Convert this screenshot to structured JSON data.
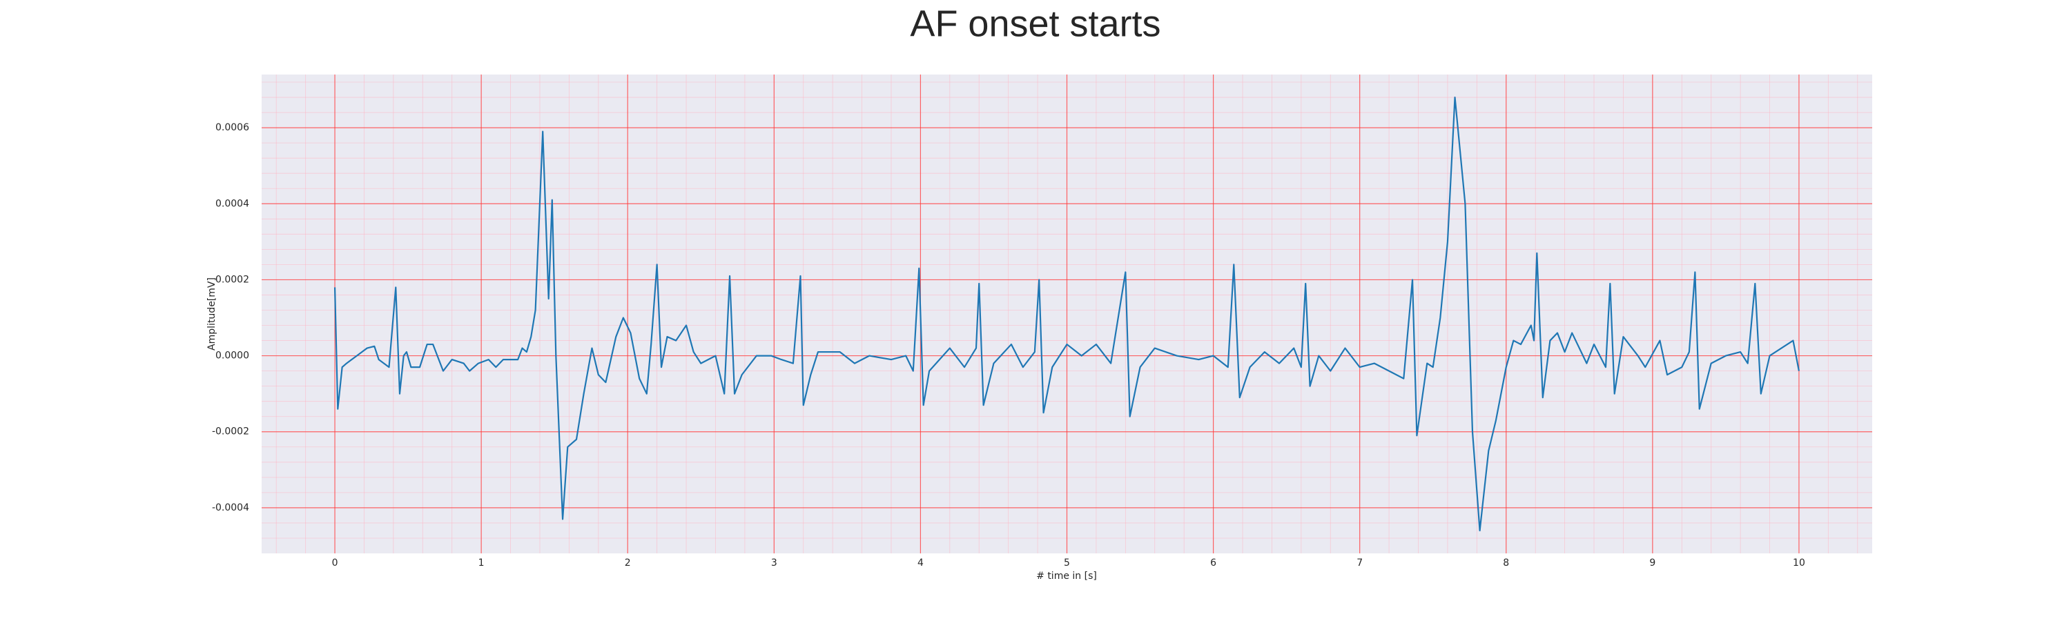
{
  "chart_data": {
    "type": "line",
    "title": "AF onset starts",
    "x_label": "# time in [s]",
    "y_label": "Amplitude[mV]",
    "color": "#1f77b4",
    "grid": true,
    "minor_grid": true,
    "xlim": [
      -0.5,
      10.5
    ],
    "xticks": [
      0,
      1,
      2,
      3,
      4,
      5,
      6,
      7,
      8,
      9,
      10
    ],
    "ylim": [
      -0.00052,
      0.00074
    ],
    "yticks": [
      -0.0004,
      -0.0002,
      {
        "value": 0,
        "label": "0.0000"
      },
      0.0002,
      0.0004,
      0.0006
    ],
    "x": [
      0,
      0.02,
      0.05,
      0.08,
      0.15,
      0.22,
      0.27,
      0.3,
      0.37,
      0.416,
      0.443,
      0.47,
      0.49,
      0.52,
      0.58,
      0.63,
      0.67,
      0.74,
      0.8,
      0.88,
      0.92,
      0.98,
      1.05,
      1.1,
      1.15,
      1.25,
      1.28,
      1.31,
      1.34,
      1.37,
      1.42,
      1.46,
      1.484,
      1.51,
      1.556,
      1.59,
      1.65,
      1.7,
      1.756,
      1.8,
      1.85,
      1.92,
      1.97,
      2.02,
      2.08,
      2.13,
      2.16,
      2.2,
      2.23,
      2.27,
      2.33,
      2.4,
      2.45,
      2.5,
      2.6,
      2.66,
      2.697,
      2.73,
      2.78,
      2.88,
      2.98,
      3.05,
      3.13,
      3.18,
      3.2,
      3.25,
      3.3,
      3.45,
      3.55,
      3.65,
      3.8,
      3.9,
      3.95,
      3.99,
      4.02,
      4.06,
      4.2,
      4.3,
      4.38,
      4.4,
      4.43,
      4.5,
      4.62,
      4.7,
      4.78,
      4.81,
      4.84,
      4.9,
      5.0,
      5.1,
      5.2,
      5.3,
      5.4,
      5.43,
      5.5,
      5.6,
      5.75,
      5.9,
      6.0,
      6.1,
      6.14,
      6.18,
      6.25,
      6.35,
      6.45,
      6.55,
      6.6,
      6.63,
      6.66,
      6.72,
      6.8,
      6.9,
      7.0,
      7.1,
      7.2,
      7.3,
      7.36,
      7.39,
      7.46,
      7.5,
      7.55,
      7.6,
      7.65,
      7.72,
      7.77,
      7.82,
      7.88,
      7.93,
      8.0,
      8.05,
      8.1,
      8.17,
      8.19,
      8.21,
      8.25,
      8.3,
      8.35,
      8.4,
      8.45,
      8.55,
      8.6,
      8.68,
      8.71,
      8.74,
      8.8,
      8.9,
      8.95,
      9.05,
      9.1,
      9.2,
      9.25,
      9.29,
      9.32,
      9.4,
      9.5,
      9.6,
      9.65,
      9.7,
      9.74,
      9.8,
      9.88,
      9.96,
      10.0
    ],
    "values": [
      0.00018,
      -0.00014,
      -3e-05,
      -2e-05,
      0,
      2e-05,
      2.5e-05,
      -1e-05,
      -3e-05,
      0.00018,
      -0.0001,
      0,
      1e-05,
      -3e-05,
      -3e-05,
      3e-05,
      3e-05,
      -4e-05,
      -1e-05,
      -2e-05,
      -4e-05,
      -2e-05,
      -1e-05,
      -3e-05,
      -1e-05,
      -1e-05,
      2e-05,
      1e-05,
      5e-05,
      0.00012,
      0.00059,
      0.00015,
      0.00041,
      0,
      -0.00043,
      -0.00024,
      -0.00022,
      -0.0001,
      2e-05,
      -5e-05,
      -7e-05,
      5e-05,
      0.0001,
      6e-05,
      -6e-05,
      -0.0001,
      3e-05,
      0.00024,
      -3e-05,
      5e-05,
      4e-05,
      8e-05,
      1e-05,
      -2e-05,
      0,
      -0.0001,
      0.00021,
      -0.0001,
      -5e-05,
      0,
      0,
      -1e-05,
      -2e-05,
      0.00021,
      -0.00013,
      -5e-05,
      1e-05,
      1e-05,
      -2e-05,
      0,
      -1e-05,
      0,
      -4e-05,
      0.00023,
      -0.00013,
      -4e-05,
      2e-05,
      -3e-05,
      2e-05,
      0.00019,
      -0.00013,
      -2e-05,
      3e-05,
      -3e-05,
      1e-05,
      0.0002,
      -0.00015,
      -3e-05,
      3e-05,
      0,
      3e-05,
      -2e-05,
      0.00022,
      -0.00016,
      -3e-05,
      2e-05,
      0,
      -1e-05,
      0,
      -3e-05,
      0.00024,
      -0.00011,
      -3e-05,
      1e-05,
      -2e-05,
      2e-05,
      -3e-05,
      0.00019,
      -8e-05,
      0,
      -4e-05,
      2e-05,
      -3e-05,
      -2e-05,
      -4e-05,
      -6e-05,
      0.0002,
      -0.00021,
      -2e-05,
      -3e-05,
      0.0001,
      0.0003,
      0.00068,
      0.0004,
      -0.0002,
      -0.00046,
      -0.00025,
      -0.00017,
      -3e-05,
      4e-05,
      3e-05,
      8e-05,
      4e-05,
      0.00027,
      -0.00011,
      4e-05,
      6e-05,
      1e-05,
      6e-05,
      -2e-05,
      3e-05,
      -3e-05,
      0.00019,
      -0.0001,
      5e-05,
      0,
      -3e-05,
      4e-05,
      -5e-05,
      -3e-05,
      1e-05,
      0.00022,
      -0.00014,
      -2e-05,
      0,
      1e-05,
      -2e-05,
      0.00019,
      -0.0001,
      0,
      2e-05,
      4e-05,
      -4e-05
    ]
  }
}
